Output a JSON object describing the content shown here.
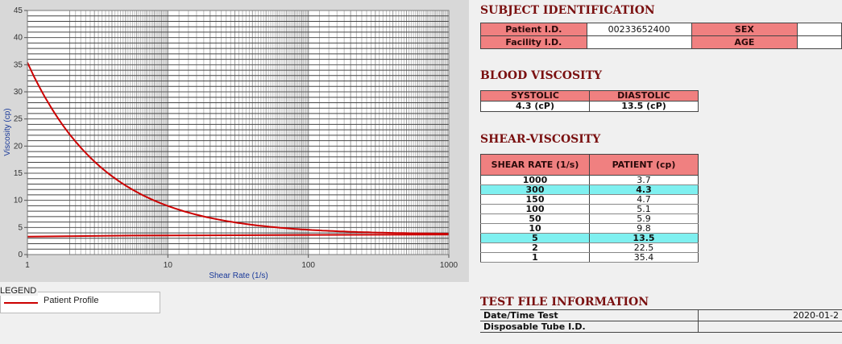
{
  "chart_data": {
    "type": "line",
    "xscale": "log",
    "xlim": [
      1,
      1000
    ],
    "ylim": [
      0,
      45
    ],
    "xlabel": "Shear Rate (1/s)",
    "ylabel": "Viscosity (cp)",
    "x_ticks": [
      "1",
      "10",
      "100",
      "1000"
    ],
    "y_ticks": [
      "0",
      "5",
      "10",
      "15",
      "20",
      "25",
      "30",
      "35",
      "40",
      "45"
    ],
    "grid": true,
    "series": [
      {
        "name": "Patient Profile",
        "color": "#cc0000",
        "x": [
          1,
          1.5,
          2,
          3,
          5,
          10,
          20,
          50,
          100,
          150,
          300,
          500,
          1000
        ],
        "y": [
          35.4,
          27.0,
          22.5,
          18.0,
          13.5,
          9.8,
          7.6,
          5.9,
          5.1,
          4.7,
          4.3,
          3.9,
          3.7
        ]
      },
      {
        "color": "#cc0000",
        "x": [
          1,
          5.5,
          1000
        ],
        "y": [
          3.3,
          3.5,
          3.7
        ]
      }
    ]
  },
  "legend": {
    "title": "LEGEND",
    "items": [
      {
        "label": "Patient Profile",
        "color": "#cc0000"
      }
    ]
  },
  "subject": {
    "title": "SUBJECT IDENTIFICATION",
    "patient_id_label": "Patient I.D.",
    "patient_id_value": "00233652400",
    "facility_id_label": "Facility I.D.",
    "facility_id_value": "",
    "sex_label": "SEX",
    "sex_value": "",
    "age_label": "AGE",
    "age_value": ""
  },
  "blood_viscosity": {
    "title": "BLOOD VISCOSITY",
    "systolic_label": "SYSTOLIC",
    "systolic_value": "4.3 (cP)",
    "diastolic_label": "DIASTOLIC",
    "diastolic_value": "13.5 (cP)"
  },
  "shear_viscosity": {
    "title": "SHEAR-VISCOSITY",
    "col_rate": "SHEAR RATE (1/s)",
    "col_patient": "PATIENT (cp)",
    "rows": [
      {
        "rate": "1000",
        "patient": "3.7",
        "highlight": false
      },
      {
        "rate": "300",
        "patient": "4.3",
        "highlight": true
      },
      {
        "rate": "150",
        "patient": "4.7",
        "highlight": false
      },
      {
        "rate": "100",
        "patient": "5.1",
        "highlight": false
      },
      {
        "rate": "50",
        "patient": "5.9",
        "highlight": false
      },
      {
        "rate": "10",
        "patient": "9.8",
        "highlight": false
      },
      {
        "rate": "5",
        "patient": "13.5",
        "highlight": true
      },
      {
        "rate": "2",
        "patient": "22.5",
        "highlight": false
      },
      {
        "rate": "1",
        "patient": "35.4",
        "highlight": false
      }
    ]
  },
  "test_file": {
    "title": "TEST FILE INFORMATION",
    "datetime_label": "Date/Time Test",
    "datetime_value": "2020-01-2",
    "tube_label": "Disposable Tube I.D.",
    "tube_value": ""
  }
}
